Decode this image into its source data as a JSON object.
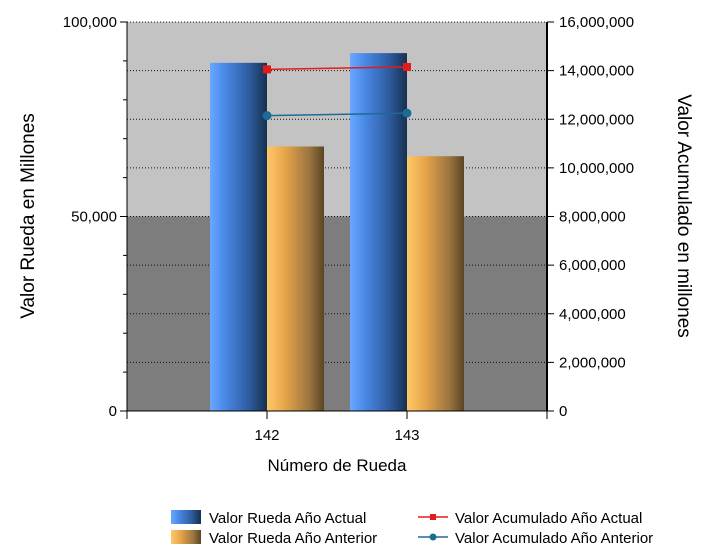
{
  "chart_data": {
    "type": "bar",
    "categories": [
      "142",
      "143"
    ],
    "xlabel": "Número de Rueda",
    "ylabel": "Valor Rueda en Millones",
    "y2label": "Valor Acumulado en millones",
    "ylim": [
      0,
      100000
    ],
    "y2lim": [
      0,
      16000000
    ],
    "y_ticks": [
      "0",
      "50,000",
      "100,000"
    ],
    "y_tick_values": [
      0,
      50000,
      100000
    ],
    "y2_ticks": [
      "0",
      "2,000,000",
      "4,000,000",
      "6,000,000",
      "8,000,000",
      "10,000,000",
      "12,000,000",
      "14,000,000",
      "16,000,000"
    ],
    "y2_tick_values": [
      0,
      2000000,
      4000000,
      6000000,
      8000000,
      10000000,
      12000000,
      14000000,
      16000000
    ],
    "bar_series": [
      {
        "name": "Valor Rueda Año Actual",
        "values": [
          89500,
          92000
        ],
        "color": "#4a8ae8"
      },
      {
        "name": "Valor Rueda Año Anterior",
        "values": [
          68000,
          65500
        ],
        "color": "#f2b24a"
      }
    ],
    "line_series": [
      {
        "name": "Valor Acumulado Año Actual",
        "values": [
          14050000,
          14150000
        ],
        "color": "#e41b1b",
        "marker": "square"
      },
      {
        "name": "Valor Acumulado Año Anterior",
        "values": [
          12150000,
          12250000
        ],
        "color": "#1b6b96",
        "marker": "circle"
      }
    ],
    "background": {
      "upper_band_color": "#c3c3c3",
      "lower_band_color": "#7d7d7d",
      "band_split_value": 50000
    },
    "grid": true,
    "legend_position": "bottom"
  }
}
